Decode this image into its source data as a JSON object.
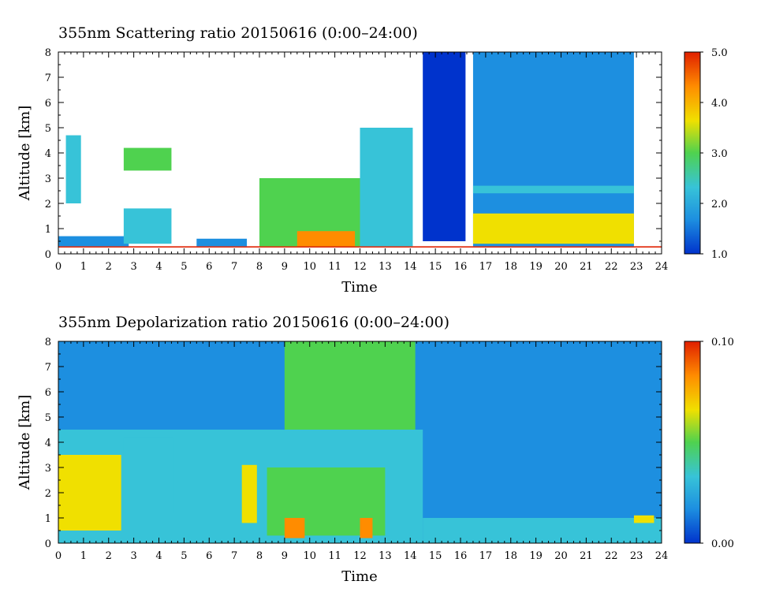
{
  "chart_data": [
    {
      "type": "heatmap",
      "title": "355nm Scattering ratio  20150616 (0:00–24:00)",
      "xlabel": "Time",
      "ylabel": "Altitude [km]",
      "xlim": [
        0,
        24
      ],
      "ylim": [
        0,
        8
      ],
      "x_ticks": [
        "0",
        "1",
        "2",
        "3",
        "4",
        "5",
        "6",
        "7",
        "8",
        "9",
        "10",
        "11",
        "12",
        "13",
        "14",
        "15",
        "16",
        "17",
        "18",
        "19",
        "20",
        "21",
        "22",
        "23",
        "24"
      ],
      "y_ticks": [
        "0",
        "1",
        "2",
        "3",
        "4",
        "5",
        "6",
        "7",
        "8"
      ],
      "colorbar": {
        "min": 1.0,
        "max": 5.0,
        "ticks": [
          "1.0",
          "2.0",
          "3.0",
          "4.0",
          "5.0"
        ]
      },
      "colors": [
        "#0033cc",
        "#1d8fe0",
        "#37c3d8",
        "#4fd24f",
        "#f0e000",
        "#ff8c00",
        "#e02000"
      ],
      "features": [
        {
          "t0": 0.0,
          "t1": 24.0,
          "h0": 0.25,
          "h1": 0.3,
          "value": 5.0
        },
        {
          "t0": 0.0,
          "t1": 2.8,
          "h0": 0.3,
          "h1": 0.7,
          "value": 1.8
        },
        {
          "t0": 0.3,
          "t1": 0.9,
          "h0": 2.0,
          "h1": 4.7,
          "value": 2.2
        },
        {
          "t0": 2.6,
          "t1": 4.5,
          "h0": 0.4,
          "h1": 1.8,
          "value": 2.0
        },
        {
          "t0": 2.6,
          "t1": 4.5,
          "h0": 3.3,
          "h1": 4.2,
          "value": 3.0
        },
        {
          "t0": 5.5,
          "t1": 7.5,
          "h0": 0.3,
          "h1": 0.6,
          "value": 1.6
        },
        {
          "t0": 8.0,
          "t1": 12.0,
          "h0": 0.3,
          "h1": 3.0,
          "value": 2.8
        },
        {
          "t0": 9.5,
          "t1": 11.8,
          "h0": 0.3,
          "h1": 0.9,
          "value": 4.5
        },
        {
          "t0": 12.0,
          "t1": 14.1,
          "h0": 0.3,
          "h1": 5.0,
          "value": 2.6
        },
        {
          "t0": 14.5,
          "t1": 16.2,
          "h0": 0.5,
          "h1": 8.0,
          "value": 1.3
        },
        {
          "t0": 16.5,
          "t1": 22.9,
          "h0": 0.3,
          "h1": 8.0,
          "value": 1.5
        },
        {
          "t0": 16.5,
          "t1": 22.9,
          "h0": 0.4,
          "h1": 1.6,
          "value": 3.6
        },
        {
          "t0": 16.5,
          "t1": 22.9,
          "h0": 2.4,
          "h1": 2.7,
          "value": 2.0
        }
      ]
    },
    {
      "type": "heatmap",
      "title": "355nm Depolarization ratio  20150616 (0:00–24:00)",
      "xlabel": "Time",
      "ylabel": "Altitude [km]",
      "xlim": [
        0,
        24
      ],
      "ylim": [
        0,
        8
      ],
      "x_ticks": [
        "0",
        "1",
        "2",
        "3",
        "4",
        "5",
        "6",
        "7",
        "8",
        "9",
        "10",
        "11",
        "12",
        "13",
        "14",
        "15",
        "16",
        "17",
        "18",
        "19",
        "20",
        "21",
        "22",
        "23",
        "24"
      ],
      "y_ticks": [
        "0",
        "1",
        "2",
        "3",
        "4",
        "5",
        "6",
        "7",
        "8"
      ],
      "colorbar": {
        "min": 0.0,
        "max": 0.1,
        "ticks": [
          "0.00",
          "0.10"
        ]
      },
      "colors": [
        "#0033cc",
        "#1d8fe0",
        "#37c3d8",
        "#4fd24f",
        "#f0e000",
        "#ff8c00",
        "#e02000"
      ],
      "features": [
        {
          "t0": 0.0,
          "t1": 24.0,
          "h0": 0.0,
          "h1": 8.0,
          "value": 0.01
        },
        {
          "t0": 0.0,
          "t1": 14.5,
          "h0": 0.0,
          "h1": 4.5,
          "value": 0.03
        },
        {
          "t0": 0.0,
          "t1": 2.5,
          "h0": 0.5,
          "h1": 3.5,
          "value": 0.07
        },
        {
          "t0": 2.6,
          "t1": 4.6,
          "h0": 1.2,
          "h1": 4.2,
          "value": 0.04
        },
        {
          "t0": 7.3,
          "t1": 7.9,
          "h0": 0.8,
          "h1": 3.1,
          "value": 0.07
        },
        {
          "t0": 8.3,
          "t1": 13.0,
          "h0": 0.3,
          "h1": 3.0,
          "value": 0.05
        },
        {
          "t0": 9.0,
          "t1": 9.8,
          "h0": 0.2,
          "h1": 1.0,
          "value": 0.09
        },
        {
          "t0": 12.0,
          "t1": 12.5,
          "h0": 0.2,
          "h1": 1.0,
          "value": 0.09
        },
        {
          "t0": 9.0,
          "t1": 14.2,
          "h0": 4.5,
          "h1": 8.0,
          "value": 0.05
        },
        {
          "t0": 14.5,
          "t1": 24.0,
          "h0": 0.0,
          "h1": 1.0,
          "value": 0.025
        },
        {
          "t0": 22.9,
          "t1": 23.7,
          "h0": 0.8,
          "h1": 1.1,
          "value": 0.06
        }
      ]
    }
  ]
}
